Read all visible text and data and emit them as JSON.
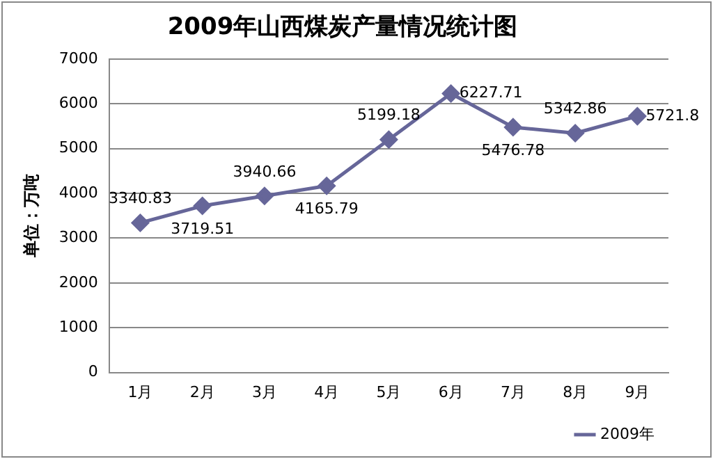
{
  "chart_data": {
    "type": "line",
    "title": "2009年山西煤炭产量情况统计图",
    "ylabel": "单位：万吨",
    "categories": [
      "1月",
      "2月",
      "3月",
      "4月",
      "5月",
      "6月",
      "7月",
      "8月",
      "9月"
    ],
    "series": [
      {
        "name": "2009年",
        "color": "#666699",
        "values": [
          3340.83,
          3719.51,
          3940.66,
          4165.79,
          5199.18,
          6227.71,
          5476.78,
          5342.86,
          5721.8
        ]
      }
    ],
    "ylim": [
      0,
      7000
    ],
    "yticks": [
      0,
      1000,
      2000,
      3000,
      4000,
      5000,
      6000,
      7000
    ],
    "grid": "y",
    "legend": "bottom right",
    "marker": "diamond",
    "line_style": "solid",
    "data_labels": true
  }
}
